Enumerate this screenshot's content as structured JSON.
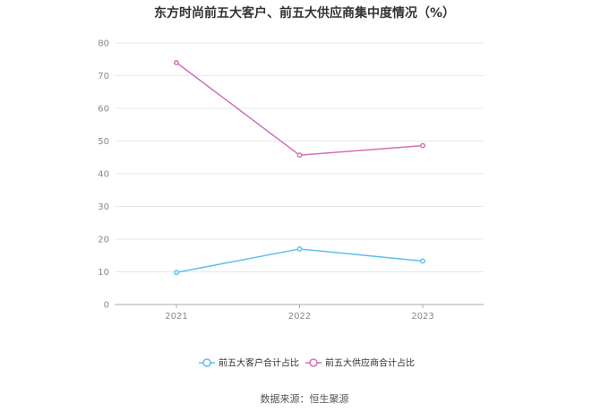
{
  "chart_data": {
    "type": "line",
    "title": "东方时尚前五大客户、前五大供应商集中度情况（%）",
    "categories": [
      "2021",
      "2022",
      "2023"
    ],
    "series": [
      {
        "name": "前五大客户合计占比",
        "values": [
          9.8,
          17.0,
          13.3
        ],
        "color": "#5bc0eb"
      },
      {
        "name": "前五大供应商合计占比",
        "values": [
          74.0,
          45.7,
          48.6
        ],
        "color": "#d36fb8"
      }
    ],
    "ylim": [
      0,
      80
    ],
    "yticks": [
      "0",
      "10",
      "20",
      "30",
      "40",
      "50",
      "60",
      "70",
      "80"
    ],
    "grid": true,
    "legend_position": "bottom"
  },
  "source_text": "数据来源：恒生聚源"
}
